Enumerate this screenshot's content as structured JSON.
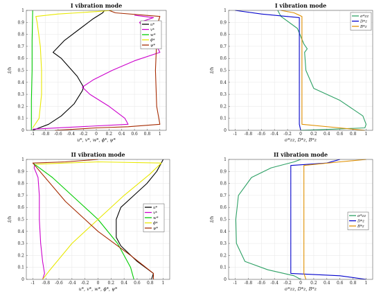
{
  "chart_data": [
    {
      "type": "line",
      "title": "I vibration mode",
      "xlabel": "u*, v*, w*, ϕ*, ψ*",
      "ylabel": "z̃/h",
      "xlim": [
        -1.1,
        1.1
      ],
      "ylim": [
        0,
        1
      ],
      "xticks": [
        -1,
        -0.8,
        -0.6,
        -0.4,
        -0.2,
        0,
        0.2,
        0.4,
        0.6,
        0.8,
        1
      ],
      "yticks": [
        0,
        0.1,
        0.2,
        0.3,
        0.4,
        0.5,
        0.6,
        0.7,
        0.8,
        0.9,
        1
      ],
      "grid": true,
      "legend_position": "top-right",
      "series": [
        {
          "name": "u*",
          "color": "#000000",
          "points": [
            [
              -1,
              0
            ],
            [
              -0.75,
              0.05
            ],
            [
              -0.55,
              0.12
            ],
            [
              -0.35,
              0.22
            ],
            [
              -0.22,
              0.33
            ],
            [
              -0.2,
              0.36
            ],
            [
              -0.3,
              0.45
            ],
            [
              -0.55,
              0.6
            ],
            [
              -0.68,
              0.65
            ],
            [
              -0.5,
              0.75
            ],
            [
              -0.25,
              0.85
            ],
            [
              -0.05,
              0.93
            ],
            [
              0.1,
              0.98
            ],
            [
              0.13,
              1
            ]
          ]
        },
        {
          "name": "v*",
          "color": "#cc00cc",
          "points": [
            [
              -1,
              0.01
            ],
            [
              0.5,
              0.05
            ],
            [
              0.45,
              0.1
            ],
            [
              0.2,
              0.2
            ],
            [
              -0.1,
              0.3
            ],
            [
              -0.22,
              0.36
            ],
            [
              -0.05,
              0.42
            ],
            [
              0.25,
              0.5
            ],
            [
              0.6,
              0.58
            ],
            [
              1,
              0.65
            ],
            [
              0.9,
              0.75
            ],
            [
              0.75,
              0.85
            ],
            [
              0.68,
              0.9
            ],
            [
              0.9,
              0.94
            ],
            [
              0.6,
              0.96
            ]
          ]
        },
        {
          "name": "w*",
          "color": "#00cc00",
          "points": [
            [
              -1.02,
              0
            ],
            [
              -1.02,
              0.25
            ],
            [
              -1.01,
              0.5
            ],
            [
              -1.01,
              0.75
            ],
            [
              -1,
              1
            ]
          ]
        },
        {
          "name": "ϕ*",
          "color": "#e8e800",
          "points": [
            [
              -1,
              0.02
            ],
            [
              -0.9,
              0.1
            ],
            [
              -0.86,
              0.3
            ],
            [
              -0.86,
              0.5
            ],
            [
              -0.88,
              0.7
            ],
            [
              -0.93,
              0.9
            ],
            [
              -0.95,
              0.95
            ],
            [
              -0.6,
              0.97
            ],
            [
              -0.3,
              0.98
            ],
            [
              0,
              0.99
            ],
            [
              0.25,
              1
            ]
          ]
        },
        {
          "name": "ψ*",
          "color": "#a52a00",
          "points": [
            [
              -0.65,
              0
            ],
            [
              0,
              0.02
            ],
            [
              0.5,
              0.03
            ],
            [
              1,
              0.05
            ],
            [
              0.95,
              0.2
            ],
            [
              0.93,
              0.5
            ],
            [
              0.95,
              0.75
            ],
            [
              0.97,
              0.9
            ],
            [
              1,
              0.95
            ],
            [
              0.3,
              0.98
            ],
            [
              0.2,
              1
            ]
          ]
        }
      ]
    },
    {
      "type": "line",
      "title": "I vibration mode",
      "xlabel": "σ*zz, D*z, B*z",
      "ylabel": "z̃/h",
      "xlim": [
        -1.1,
        1.1
      ],
      "ylim": [
        0,
        1
      ],
      "xticks": [
        -1,
        -0.8,
        -0.6,
        -0.4,
        -0.2,
        0,
        0.2,
        0.4,
        0.6,
        0.8,
        1
      ],
      "yticks": [
        0,
        0.1,
        0.2,
        0.3,
        0.4,
        0.5,
        0.6,
        0.7,
        0.8,
        0.9,
        1
      ],
      "grid": true,
      "legend_position": "top-right",
      "series": [
        {
          "name": "σ*zz",
          "color": "#2ca064",
          "points": [
            [
              0,
              0
            ],
            [
              0.5,
              0.01
            ],
            [
              0.98,
              0.02
            ],
            [
              1,
              0.05
            ],
            [
              0.95,
              0.12
            ],
            [
              0.6,
              0.25
            ],
            [
              0.2,
              0.35
            ],
            [
              0.08,
              0.5
            ],
            [
              0.06,
              0.65
            ],
            [
              0.1,
              0.68
            ],
            [
              0.05,
              0.72
            ],
            [
              -0.05,
              0.85
            ],
            [
              -0.3,
              0.95
            ],
            [
              -0.35,
              1
            ]
          ]
        },
        {
          "name": "D*z",
          "color": "#0000cc",
          "points": [
            [
              0,
              0
            ],
            [
              -0.02,
              0.05
            ],
            [
              -0.02,
              0.3
            ],
            [
              -0.02,
              0.6
            ],
            [
              -0.02,
              0.94
            ],
            [
              -0.6,
              0.97
            ],
            [
              -1,
              1
            ]
          ]
        },
        {
          "name": "B*z",
          "color": "#e09000",
          "points": [
            [
              0.98,
              0
            ],
            [
              0.6,
              0.02
            ],
            [
              0.02,
              0.05
            ],
            [
              0.02,
              0.5
            ],
            [
              0.02,
              0.95
            ],
            [
              -0.1,
              0.98
            ],
            [
              -0.3,
              1
            ]
          ]
        }
      ]
    },
    {
      "type": "line",
      "title": "II vibration mode",
      "xlabel": "u*, v*, w*, ϕ*, ψ*",
      "ylabel": "z̃/h",
      "xlim": [
        -1.1,
        1.1
      ],
      "ylim": [
        0,
        1
      ],
      "xticks": [
        -1,
        -0.8,
        -0.6,
        -0.4,
        -0.2,
        0,
        0.2,
        0.4,
        0.6,
        0.8,
        1
      ],
      "yticks": [
        0,
        0.1,
        0.2,
        0.3,
        0.4,
        0.5,
        0.6,
        0.7,
        0.8,
        0.9,
        1
      ],
      "grid": true,
      "legend_position": "right",
      "series": [
        {
          "name": "u*",
          "color": "#000000",
          "points": [
            [
              0.82,
              0
            ],
            [
              0.85,
              0.05
            ],
            [
              0.6,
              0.15
            ],
            [
              0.35,
              0.28
            ],
            [
              0.28,
              0.35
            ],
            [
              0.28,
              0.5
            ],
            [
              0.35,
              0.6
            ],
            [
              0.55,
              0.7
            ],
            [
              0.75,
              0.8
            ],
            [
              0.9,
              0.9
            ],
            [
              0.97,
              0.97
            ],
            [
              1,
              1
            ]
          ]
        },
        {
          "name": "v*",
          "color": "#cc00cc",
          "points": [
            [
              -0.85,
              0
            ],
            [
              -0.82,
              0.05
            ],
            [
              -0.85,
              0.15
            ],
            [
              -0.88,
              0.3
            ],
            [
              -0.9,
              0.5
            ],
            [
              -0.9,
              0.7
            ],
            [
              -0.92,
              0.85
            ],
            [
              -0.98,
              0.93
            ],
            [
              -0.97,
              0.96
            ]
          ]
        },
        {
          "name": "w*",
          "color": "#00cc00",
          "points": [
            [
              0.55,
              0
            ],
            [
              0.5,
              0.1
            ],
            [
              0.3,
              0.3
            ],
            [
              0,
              0.5
            ],
            [
              -0.3,
              0.65
            ],
            [
              -0.7,
              0.85
            ],
            [
              -1,
              0.97
            ]
          ]
        },
        {
          "name": "ϕ*",
          "color": "#e8e800",
          "points": [
            [
              -0.85,
              0
            ],
            [
              -0.75,
              0.07
            ],
            [
              -0.4,
              0.3
            ],
            [
              0,
              0.5
            ],
            [
              0.4,
              0.7
            ],
            [
              0.8,
              0.88
            ],
            [
              0.97,
              0.97
            ],
            [
              0,
              0.98
            ],
            [
              -0.5,
              0.97
            ],
            [
              -0.95,
              0.96
            ]
          ]
        },
        {
          "name": "ψ*",
          "color": "#a52a00",
          "points": [
            [
              0.85,
              0
            ],
            [
              0.85,
              0.05
            ],
            [
              0.5,
              0.2
            ],
            [
              0,
              0.4
            ],
            [
              -0.5,
              0.65
            ],
            [
              -1,
              0.97
            ],
            [
              -0.5,
              0.98
            ],
            [
              0,
              1
            ]
          ]
        }
      ]
    },
    {
      "type": "line",
      "title": "II vibration mode",
      "xlabel": "σ*zz, D*z, B*z",
      "ylabel": "z̃/h",
      "xlim": [
        -1.1,
        1.1
      ],
      "ylim": [
        0,
        1
      ],
      "xticks": [
        -1,
        -0.8,
        -0.6,
        -0.4,
        -0.2,
        0,
        0.2,
        0.4,
        0.6,
        0.8,
        1
      ],
      "yticks": [
        0,
        0.1,
        0.2,
        0.3,
        0.4,
        0.5,
        0.6,
        0.7,
        0.8,
        0.9,
        1
      ],
      "grid": true,
      "legend_position": "right",
      "series": [
        {
          "name": "σ*zz",
          "color": "#2ca064",
          "points": [
            [
              0,
              0
            ],
            [
              -0.1,
              0.03
            ],
            [
              -0.5,
              0.08
            ],
            [
              -0.85,
              0.15
            ],
            [
              -0.98,
              0.3
            ],
            [
              -0.99,
              0.5
            ],
            [
              -0.95,
              0.7
            ],
            [
              -0.75,
              0.85
            ],
            [
              -0.45,
              0.93
            ],
            [
              -0.1,
              0.98
            ],
            [
              0,
              1
            ]
          ]
        },
        {
          "name": "D*z",
          "color": "#0000cc",
          "points": [
            [
              1,
              0
            ],
            [
              0.6,
              0.03
            ],
            [
              -0.15,
              0.05
            ],
            [
              -0.15,
              0.3
            ],
            [
              -0.15,
              0.6
            ],
            [
              -0.15,
              0.95
            ],
            [
              0.4,
              0.97
            ],
            [
              0.6,
              1
            ]
          ]
        },
        {
          "name": "B*z",
          "color": "#e09000",
          "points": [
            [
              0.08,
              0
            ],
            [
              0.05,
              0.05
            ],
            [
              0.05,
              0.5
            ],
            [
              0.05,
              0.95
            ],
            [
              0.6,
              0.98
            ],
            [
              1,
              1
            ]
          ]
        }
      ]
    }
  ]
}
